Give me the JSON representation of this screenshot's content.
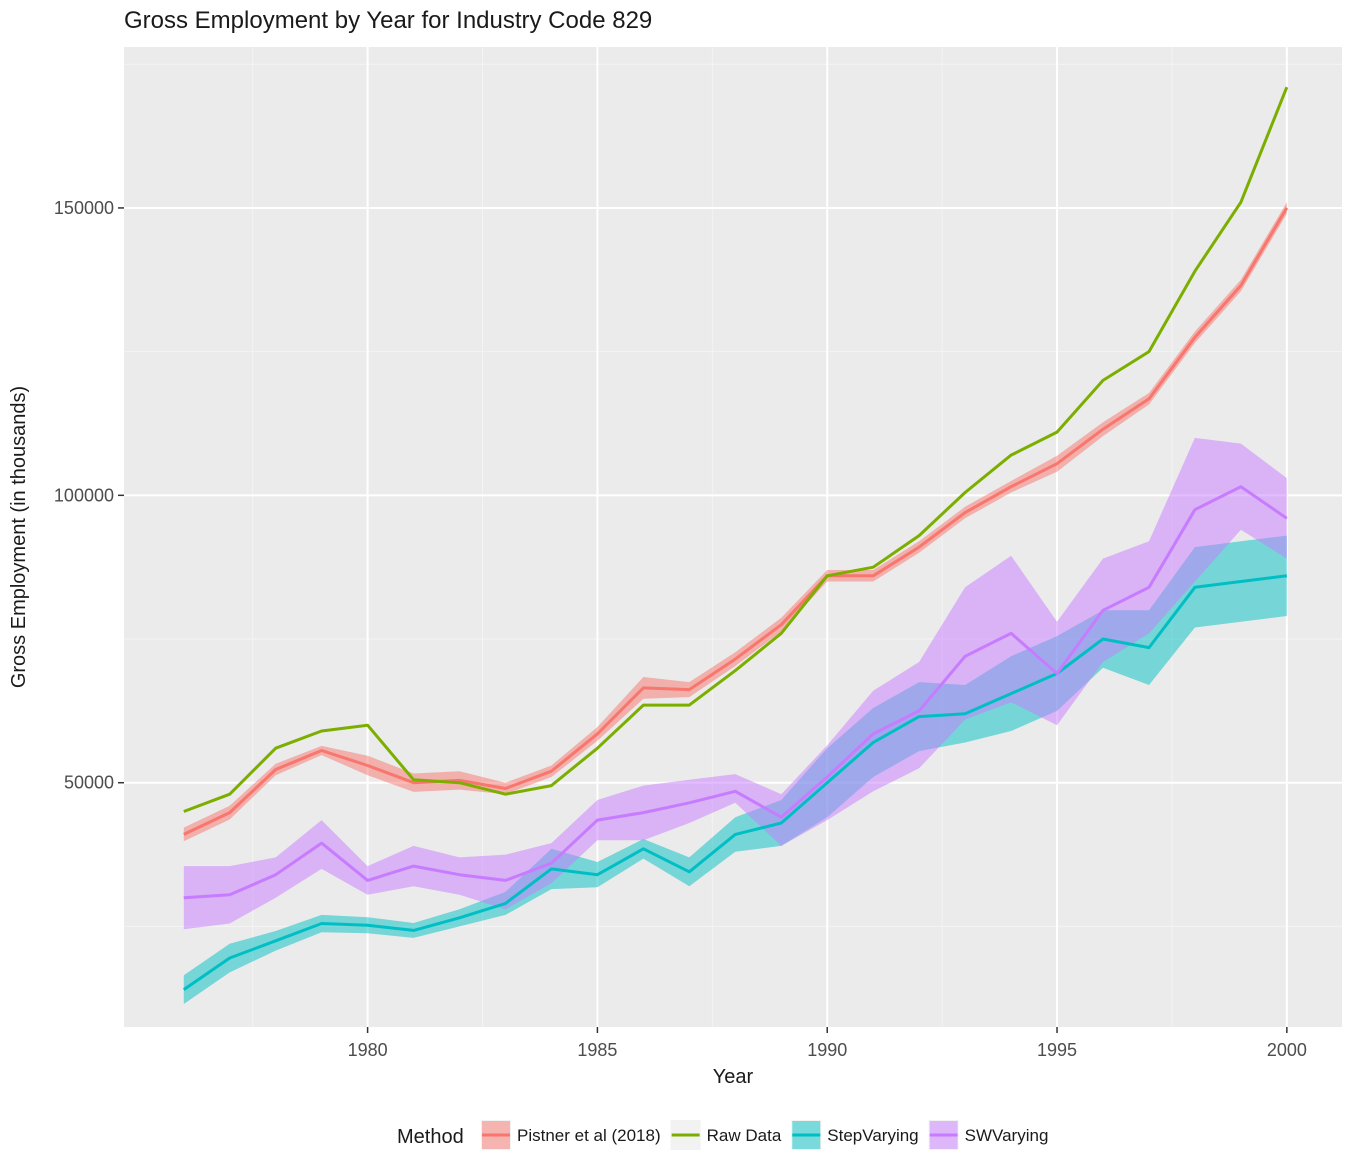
{
  "chart_data": {
    "type": "line",
    "title": "Gross Employment by Year for Industry Code 829",
    "xlabel": "Year",
    "ylabel": "Gross Employment (in thousands)",
    "x": [
      1976,
      1977,
      1978,
      1979,
      1980,
      1981,
      1982,
      1983,
      1984,
      1985,
      1986,
      1987,
      1988,
      1989,
      1990,
      1991,
      1992,
      1993,
      1994,
      1995,
      1996,
      1997,
      1998,
      1999,
      2000
    ],
    "xlim": [
      1974.7,
      2001.2
    ],
    "ylim": [
      7500,
      178000
    ],
    "x_ticks": [
      1980,
      1985,
      1990,
      1995,
      2000
    ],
    "x_tick_labels": [
      "1980",
      "1985",
      "1990",
      "1995",
      "2000"
    ],
    "y_ticks": [
      50000,
      100000,
      150000
    ],
    "y_tick_labels": [
      "50000",
      "100000",
      "150000"
    ],
    "grid": true,
    "legend": {
      "title": "Method",
      "position": "bottom"
    },
    "series": [
      {
        "name": "Pistner et al (2018)",
        "color": "#F8766D",
        "values": [
          41000,
          44800,
          52300,
          55600,
          53000,
          50000,
          50400,
          49000,
          52000,
          58500,
          66500,
          66200,
          71500,
          77500,
          86000,
          86000,
          91000,
          97000,
          101500,
          105500,
          111500,
          116800,
          127500,
          136500,
          150000
        ],
        "lower": [
          39800,
          43600,
          51300,
          54800,
          51300,
          48400,
          48800,
          48000,
          51000,
          57300,
          64600,
          64900,
          70300,
          76300,
          85000,
          85000,
          90000,
          96000,
          100500,
          104100,
          110300,
          115800,
          126500,
          135500,
          149000
        ],
        "upper": [
          42200,
          46000,
          53300,
          56400,
          54700,
          51600,
          52000,
          50000,
          53000,
          59700,
          68400,
          67500,
          72700,
          78700,
          87000,
          87000,
          92000,
          98000,
          102500,
          106900,
          112700,
          117800,
          128500,
          137500,
          151000
        ]
      },
      {
        "name": "Raw Data",
        "color": "#7CAE00",
        "values": [
          45000,
          48000,
          56000,
          59000,
          60000,
          50500,
          50000,
          48000,
          49500,
          56000,
          63500,
          63500,
          69500,
          76000,
          86000,
          87500,
          93000,
          100500,
          107000,
          111000,
          120000,
          125000,
          139000,
          151000,
          171000
        ]
      },
      {
        "name": "StepVarying",
        "color": "#00BFC4",
        "values": [
          14000,
          19500,
          22500,
          25500,
          25200,
          24300,
          26500,
          29000,
          35000,
          34000,
          38500,
          34500,
          41000,
          43000,
          50000,
          57000,
          61500,
          62000,
          65500,
          69000,
          75000,
          73500,
          84000,
          85000,
          86000
        ],
        "lower": [
          11500,
          17000,
          20800,
          24000,
          23800,
          23000,
          25000,
          27000,
          31500,
          31800,
          36800,
          32000,
          38000,
          39000,
          44000,
          51000,
          55500,
          57000,
          59000,
          62500,
          70000,
          67000,
          77000,
          78000,
          79000
        ],
        "upper": [
          16500,
          22000,
          24200,
          27000,
          26600,
          25600,
          28000,
          31000,
          38500,
          36200,
          40200,
          37000,
          44000,
          47000,
          56000,
          63000,
          67500,
          67000,
          72000,
          75500,
          80000,
          80000,
          91000,
          92000,
          93000
        ]
      },
      {
        "name": "SWVarying",
        "color": "#C77CFF",
        "values": [
          30000,
          30500,
          34000,
          39500,
          33000,
          35500,
          34000,
          33000,
          36000,
          43500,
          44800,
          46500,
          48500,
          44000,
          51000,
          58500,
          62500,
          72000,
          76000,
          69000,
          80000,
          84000,
          97500,
          101500,
          96000
        ],
        "lower": [
          24500,
          25500,
          30000,
          35000,
          30500,
          32000,
          30500,
          28000,
          32500,
          40000,
          40000,
          43000,
          46500,
          39000,
          43500,
          48500,
          52500,
          61000,
          64000,
          60000,
          71000,
          76000,
          85000,
          94000,
          89000
        ],
        "upper": [
          35500,
          35500,
          37000,
          43500,
          35500,
          39000,
          37000,
          37500,
          39500,
          47000,
          49500,
          50500,
          51500,
          48000,
          56500,
          66000,
          71000,
          84000,
          89500,
          78000,
          89000,
          92000,
          110000,
          109000,
          103000
        ]
      }
    ]
  }
}
